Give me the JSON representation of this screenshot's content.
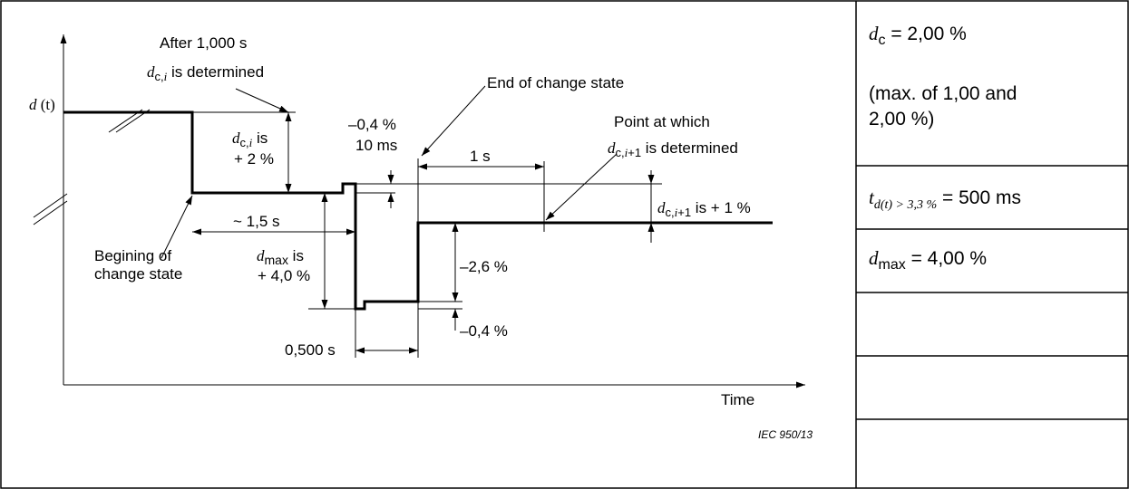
{
  "diagram": {
    "y_axis_label": {
      "name": "d",
      "arg": "(t)"
    },
    "x_axis_label": "Time",
    "annotations": {
      "after": "After 1,000 s",
      "dci_determined_sub": "c,",
      "dci_determined_i": "i",
      "dci_determined_rest": " is determined",
      "dci_is_sub": "c,",
      "dci_is_i": "i",
      "dci_is_rest": " is",
      "dci_value": "+ 2 %",
      "end_change": "End of change state",
      "minus04_top": "–0,4 %",
      "ms10": "10 ms",
      "point_at": "Point at which",
      "dci1_sub": "c,",
      "dci1_i": "i",
      "dci1_plus1": "+1",
      "dci1_rest": " is determined",
      "one_s": "1 s",
      "dci1_is_sub": "c,",
      "dci1_is_i": "i",
      "dci1_is_plus1": "+1",
      "dci1_is_rest": " is + 1 %",
      "t15": "~ 1,5 s",
      "begin1": "Begining of",
      "begin2": "change state",
      "dmax_sub": "max",
      "dmax_rest": " is",
      "dmax_value": "+ 4,0 %",
      "minus26": "–2,6 %",
      "minus04_bot": "–0,4 %",
      "t0500": "0,500 s",
      "ref": "IEC  950/13"
    }
  },
  "side_table": {
    "rows": [
      {
        "type": "dc",
        "sub": "c",
        "text": " = 2,00 %",
        "note1": "(max. of 1,00 and",
        "note2": "2,00 %)"
      },
      {
        "type": "t",
        "sub": "d(t) > 3,3 %",
        "text": " = 500 ms"
      },
      {
        "type": "dmax",
        "sub": "max",
        "text": " = 4,00 %"
      },
      {
        "type": "empty"
      },
      {
        "type": "empty"
      },
      {
        "type": "empty"
      }
    ]
  }
}
